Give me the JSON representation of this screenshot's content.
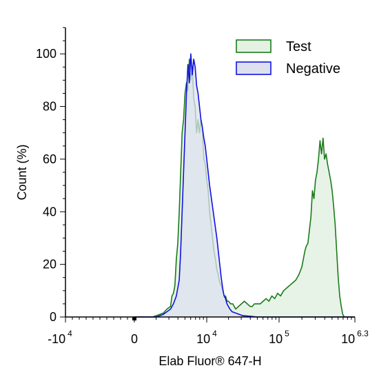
{
  "chart_data": {
    "type": "area",
    "xlabel": "Elab Fluor® 647-H",
    "ylabel": "Count (%)",
    "ylim": [
      0,
      110
    ],
    "y_ticks": [
      0,
      20,
      40,
      60,
      80,
      100
    ],
    "x_scale": "biexponential",
    "x_ticks": [
      {
        "base": "-10",
        "exp": "4"
      },
      {
        "base": "0",
        "exp": ""
      },
      {
        "base": "10",
        "exp": "4"
      },
      {
        "base": "10",
        "exp": "5"
      },
      {
        "base": "10",
        "exp": "6.3"
      }
    ],
    "legend_position": "top-right",
    "series": [
      {
        "name": "Test",
        "stroke": "#1a7a1a",
        "fill": "#e3f2e3",
        "points": [
          [
            0,
            0
          ],
          [
            0.25,
            0
          ],
          [
            0.3,
            0.5
          ],
          [
            0.35,
            1
          ],
          [
            0.4,
            1.5
          ],
          [
            0.45,
            3
          ],
          [
            0.5,
            4
          ],
          [
            0.52,
            8
          ],
          [
            0.54,
            9
          ],
          [
            0.56,
            12
          ],
          [
            0.58,
            22
          ],
          [
            0.6,
            28
          ],
          [
            0.62,
            40
          ],
          [
            0.64,
            55
          ],
          [
            0.66,
            70
          ],
          [
            0.68,
            75
          ],
          [
            0.7,
            85
          ],
          [
            0.72,
            89
          ],
          [
            0.74,
            86
          ],
          [
            0.76,
            98
          ],
          [
            0.78,
            90
          ],
          [
            0.8,
            95
          ],
          [
            0.82,
            83
          ],
          [
            0.84,
            80
          ],
          [
            0.86,
            70
          ],
          [
            0.88,
            75
          ],
          [
            0.9,
            70
          ],
          [
            0.92,
            75
          ],
          [
            0.94,
            72
          ],
          [
            0.96,
            60
          ],
          [
            0.98,
            58
          ],
          [
            1.0,
            52
          ],
          [
            1.02,
            48
          ],
          [
            1.04,
            40
          ],
          [
            1.06,
            35
          ],
          [
            1.08,
            30
          ],
          [
            1.1,
            25
          ],
          [
            1.12,
            22
          ],
          [
            1.14,
            18
          ],
          [
            1.16,
            16
          ],
          [
            1.18,
            13
          ],
          [
            1.2,
            12
          ],
          [
            1.22,
            10
          ],
          [
            1.24,
            8
          ],
          [
            1.26,
            8
          ],
          [
            1.28,
            6
          ],
          [
            1.3,
            6
          ],
          [
            1.33,
            5
          ],
          [
            1.36,
            5
          ],
          [
            1.4,
            3
          ],
          [
            1.44,
            4
          ],
          [
            1.48,
            5
          ],
          [
            1.52,
            6
          ],
          [
            1.56,
            5
          ],
          [
            1.6,
            4
          ],
          [
            1.63,
            4
          ],
          [
            1.66,
            5
          ],
          [
            1.7,
            5
          ],
          [
            1.74,
            5
          ],
          [
            1.78,
            6
          ],
          [
            1.82,
            7
          ],
          [
            1.86,
            6
          ],
          [
            1.9,
            8
          ],
          [
            1.94,
            7
          ],
          [
            1.98,
            9
          ],
          [
            2.02,
            8
          ],
          [
            2.06,
            10
          ],
          [
            2.1,
            11
          ],
          [
            2.14,
            12
          ],
          [
            2.18,
            13
          ],
          [
            2.22,
            14
          ],
          [
            2.26,
            16
          ],
          [
            2.3,
            19
          ],
          [
            2.32,
            22
          ],
          [
            2.34,
            25
          ],
          [
            2.36,
            27
          ],
          [
            2.38,
            28
          ],
          [
            2.4,
            33
          ],
          [
            2.42,
            38
          ],
          [
            2.44,
            48
          ],
          [
            2.46,
            45
          ],
          [
            2.48,
            52
          ],
          [
            2.5,
            55
          ],
          [
            2.52,
            60
          ],
          [
            2.54,
            67
          ],
          [
            2.56,
            62
          ],
          [
            2.58,
            68
          ],
          [
            2.6,
            60
          ],
          [
            2.62,
            62
          ],
          [
            2.64,
            58
          ],
          [
            2.66,
            55
          ],
          [
            2.68,
            52
          ],
          [
            2.7,
            48
          ],
          [
            2.72,
            42
          ],
          [
            2.74,
            35
          ],
          [
            2.76,
            25
          ],
          [
            2.78,
            15
          ],
          [
            2.8,
            8
          ],
          [
            2.82,
            4
          ],
          [
            2.84,
            1
          ],
          [
            2.86,
            0
          ],
          [
            3.0,
            0
          ]
        ]
      },
      {
        "name": "Negative",
        "stroke": "#1010e0",
        "fill": "#dde1ef",
        "points": [
          [
            0,
            0
          ],
          [
            0.3,
            0
          ],
          [
            0.35,
            0.5
          ],
          [
            0.4,
            1
          ],
          [
            0.45,
            2
          ],
          [
            0.5,
            3
          ],
          [
            0.54,
            5
          ],
          [
            0.58,
            8
          ],
          [
            0.62,
            14
          ],
          [
            0.64,
            25
          ],
          [
            0.66,
            40
          ],
          [
            0.68,
            55
          ],
          [
            0.7,
            70
          ],
          [
            0.72,
            85
          ],
          [
            0.74,
            96
          ],
          [
            0.76,
            89
          ],
          [
            0.78,
            100
          ],
          [
            0.8,
            92
          ],
          [
            0.82,
            98
          ],
          [
            0.84,
            95
          ],
          [
            0.86,
            88
          ],
          [
            0.88,
            85
          ],
          [
            0.9,
            80
          ],
          [
            0.92,
            75
          ],
          [
            0.94,
            72
          ],
          [
            0.96,
            68
          ],
          [
            0.98,
            65
          ],
          [
            1.0,
            60
          ],
          [
            1.02,
            55
          ],
          [
            1.04,
            50
          ],
          [
            1.06,
            46
          ],
          [
            1.08,
            42
          ],
          [
            1.1,
            38
          ],
          [
            1.12,
            34
          ],
          [
            1.14,
            30
          ],
          [
            1.16,
            25
          ],
          [
            1.18,
            20
          ],
          [
            1.2,
            15
          ],
          [
            1.22,
            11
          ],
          [
            1.24,
            8
          ],
          [
            1.26,
            7
          ],
          [
            1.28,
            5
          ],
          [
            1.3,
            4
          ],
          [
            1.32,
            3
          ],
          [
            1.35,
            2
          ],
          [
            1.4,
            1.5
          ],
          [
            1.45,
            1
          ],
          [
            1.5,
            0.5
          ],
          [
            1.6,
            0.3
          ],
          [
            1.7,
            0
          ],
          [
            3.0,
            0
          ]
        ]
      }
    ]
  }
}
